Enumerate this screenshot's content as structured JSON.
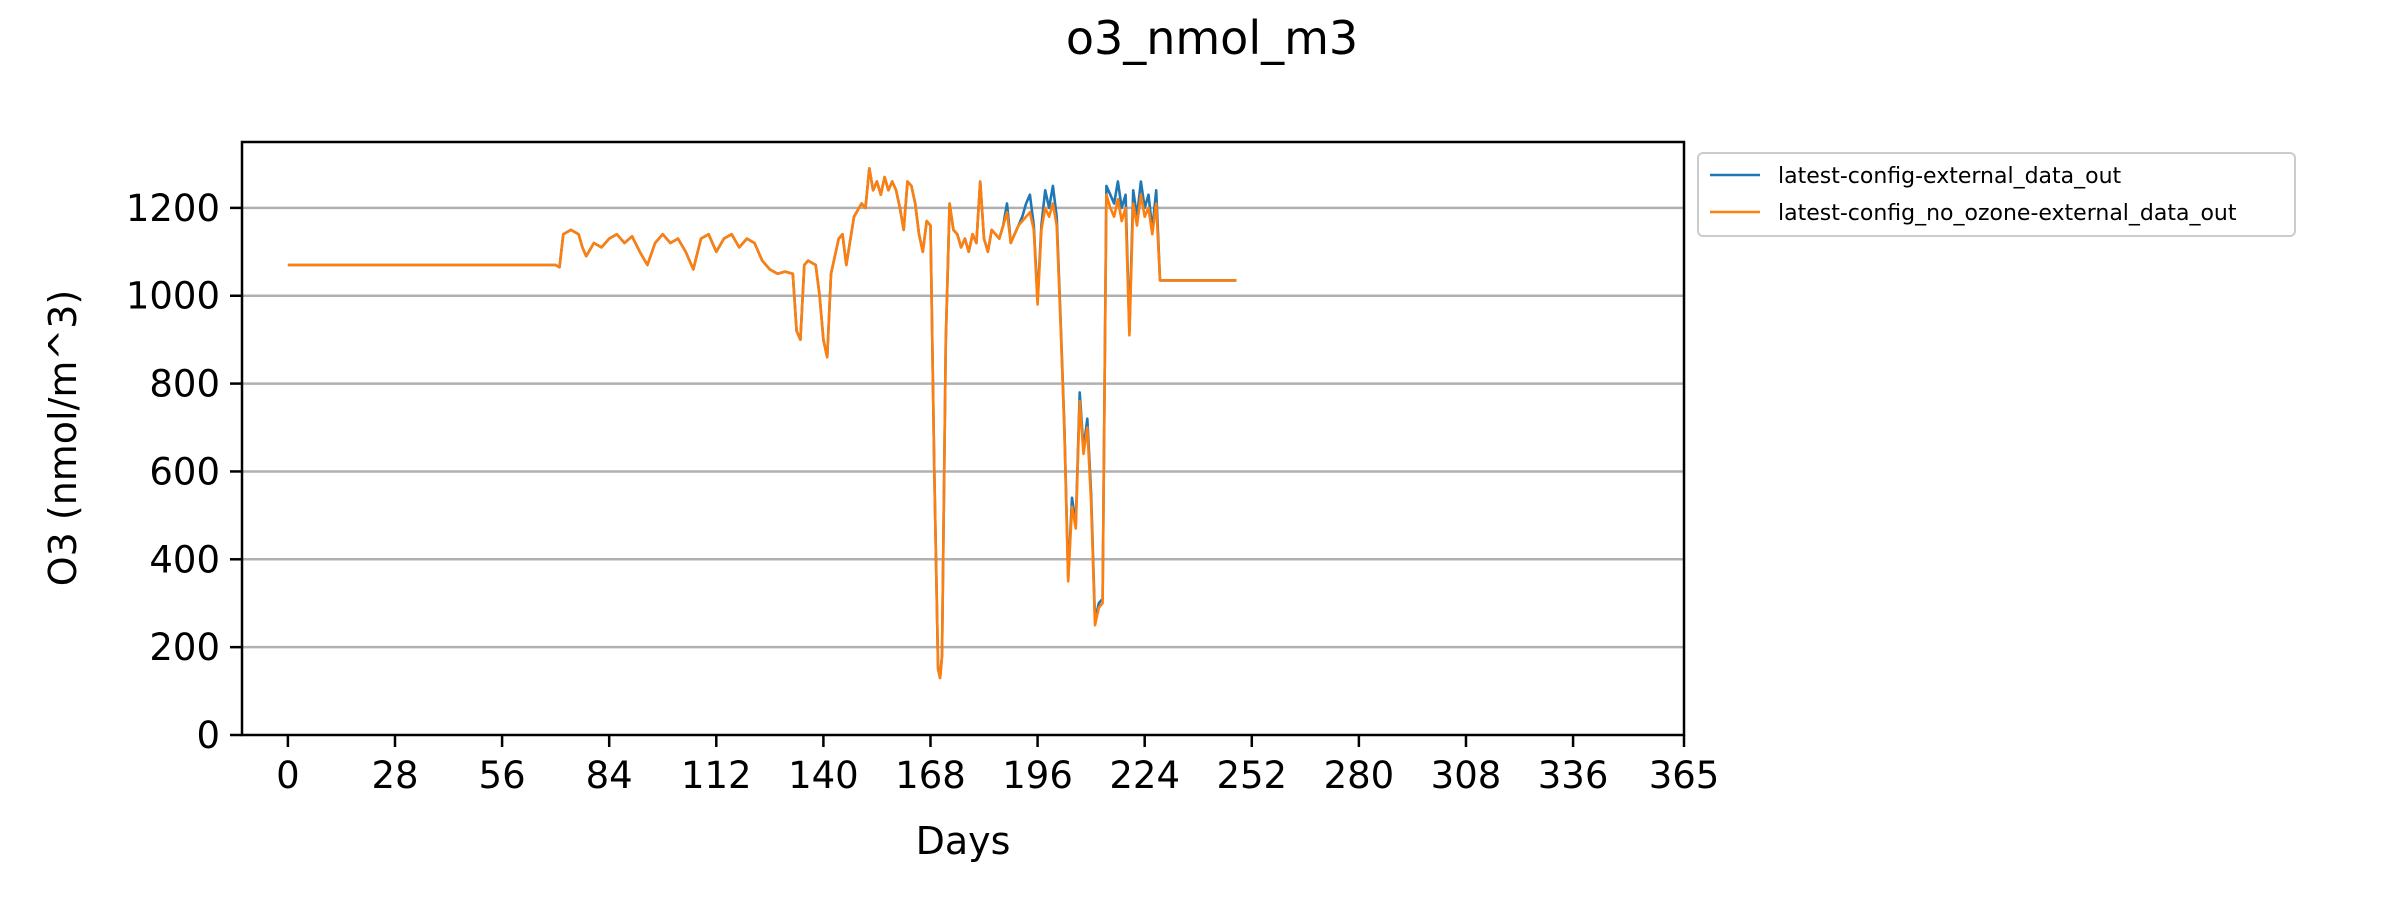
{
  "chart_data": {
    "type": "line",
    "title": "o3_nmol_m3",
    "xlabel": "Days",
    "ylabel": "O3 (nmol/m^3)",
    "xlim": [
      -12,
      365
    ],
    "ylim": [
      0,
      1350
    ],
    "xticks": [
      0,
      28,
      56,
      84,
      112,
      140,
      168,
      196,
      224,
      252,
      280,
      308,
      336,
      365
    ],
    "yticks": [
      0,
      200,
      400,
      600,
      800,
      1000,
      1200
    ],
    "grid": "horizontal",
    "legend_position": "outside-upper-right",
    "series": [
      {
        "name": "latest-config-external_data_out",
        "color": "#1f77b4",
        "points": [
          [
            0,
            1070
          ],
          [
            70,
            1070
          ],
          [
            71,
            1065
          ],
          [
            72,
            1140
          ],
          [
            74,
            1150
          ],
          [
            76,
            1140
          ],
          [
            77,
            1110
          ],
          [
            78,
            1090
          ],
          [
            80,
            1120
          ],
          [
            82,
            1110
          ],
          [
            84,
            1130
          ],
          [
            86,
            1140
          ],
          [
            88,
            1120
          ],
          [
            90,
            1135
          ],
          [
            92,
            1100
          ],
          [
            94,
            1070
          ],
          [
            96,
            1120
          ],
          [
            98,
            1140
          ],
          [
            100,
            1120
          ],
          [
            102,
            1130
          ],
          [
            104,
            1100
          ],
          [
            106,
            1060
          ],
          [
            108,
            1130
          ],
          [
            110,
            1140
          ],
          [
            112,
            1100
          ],
          [
            114,
            1130
          ],
          [
            116,
            1140
          ],
          [
            118,
            1110
          ],
          [
            120,
            1130
          ],
          [
            122,
            1120
          ],
          [
            124,
            1080
          ],
          [
            126,
            1060
          ],
          [
            128,
            1050
          ],
          [
            130,
            1055
          ],
          [
            132,
            1050
          ],
          [
            133,
            920
          ],
          [
            134,
            900
          ],
          [
            135,
            1070
          ],
          [
            136,
            1080
          ],
          [
            138,
            1070
          ],
          [
            139,
            1000
          ],
          [
            140,
            900
          ],
          [
            141,
            860
          ],
          [
            142,
            1050
          ],
          [
            144,
            1130
          ],
          [
            145,
            1140
          ],
          [
            146,
            1070
          ],
          [
            148,
            1180
          ],
          [
            150,
            1210
          ],
          [
            151,
            1200
          ],
          [
            152,
            1290
          ],
          [
            153,
            1240
          ],
          [
            154,
            1260
          ],
          [
            155,
            1230
          ],
          [
            156,
            1270
          ],
          [
            157,
            1240
          ],
          [
            158,
            1260
          ],
          [
            159,
            1240
          ],
          [
            160,
            1200
          ],
          [
            161,
            1150
          ],
          [
            162,
            1260
          ],
          [
            163,
            1250
          ],
          [
            164,
            1210
          ],
          [
            165,
            1140
          ],
          [
            166,
            1100
          ],
          [
            167,
            1170
          ],
          [
            168,
            1160
          ],
          [
            169,
            600
          ],
          [
            170,
            150
          ],
          [
            170.5,
            130
          ],
          [
            171,
            180
          ],
          [
            172,
            900
          ],
          [
            173,
            1210
          ],
          [
            174,
            1150
          ],
          [
            175,
            1140
          ],
          [
            176,
            1110
          ],
          [
            177,
            1130
          ],
          [
            178,
            1100
          ],
          [
            179,
            1140
          ],
          [
            180,
            1120
          ],
          [
            181,
            1260
          ],
          [
            182,
            1130
          ],
          [
            183,
            1100
          ],
          [
            184,
            1150
          ],
          [
            185,
            1140
          ],
          [
            186,
            1130
          ],
          [
            187,
            1160
          ],
          [
            188,
            1210
          ],
          [
            189,
            1120
          ],
          [
            190,
            1140
          ],
          [
            191,
            1160
          ],
          [
            192,
            1180
          ],
          [
            193,
            1210
          ],
          [
            194,
            1230
          ],
          [
            195,
            1160
          ],
          [
            196,
            990
          ],
          [
            197,
            1160
          ],
          [
            198,
            1240
          ],
          [
            199,
            1200
          ],
          [
            200,
            1250
          ],
          [
            201,
            1180
          ],
          [
            202,
            950
          ],
          [
            203,
            700
          ],
          [
            204,
            360
          ],
          [
            205,
            540
          ],
          [
            206,
            480
          ],
          [
            207,
            780
          ],
          [
            208,
            650
          ],
          [
            209,
            720
          ],
          [
            210,
            550
          ],
          [
            211,
            260
          ],
          [
            212,
            300
          ],
          [
            213,
            310
          ],
          [
            214,
            1250
          ],
          [
            215,
            1230
          ],
          [
            216,
            1210
          ],
          [
            217,
            1260
          ],
          [
            218,
            1200
          ],
          [
            219,
            1230
          ],
          [
            220,
            920
          ],
          [
            221,
            1240
          ],
          [
            222,
            1180
          ],
          [
            223,
            1260
          ],
          [
            224,
            1200
          ],
          [
            225,
            1230
          ],
          [
            226,
            1150
          ],
          [
            227,
            1240
          ],
          [
            228,
            1035
          ],
          [
            248,
            1035
          ]
        ]
      },
      {
        "name": "latest-config_no_ozone-external_data_out",
        "color": "#ff7f0e",
        "points": [
          [
            0,
            1070
          ],
          [
            70,
            1070
          ],
          [
            71,
            1065
          ],
          [
            72,
            1140
          ],
          [
            74,
            1150
          ],
          [
            76,
            1140
          ],
          [
            77,
            1110
          ],
          [
            78,
            1090
          ],
          [
            80,
            1120
          ],
          [
            82,
            1110
          ],
          [
            84,
            1130
          ],
          [
            86,
            1140
          ],
          [
            88,
            1120
          ],
          [
            90,
            1135
          ],
          [
            92,
            1100
          ],
          [
            94,
            1070
          ],
          [
            96,
            1120
          ],
          [
            98,
            1140
          ],
          [
            100,
            1120
          ],
          [
            102,
            1130
          ],
          [
            104,
            1100
          ],
          [
            106,
            1060
          ],
          [
            108,
            1130
          ],
          [
            110,
            1140
          ],
          [
            112,
            1100
          ],
          [
            114,
            1130
          ],
          [
            116,
            1140
          ],
          [
            118,
            1110
          ],
          [
            120,
            1130
          ],
          [
            122,
            1120
          ],
          [
            124,
            1080
          ],
          [
            126,
            1060
          ],
          [
            128,
            1050
          ],
          [
            130,
            1055
          ],
          [
            132,
            1050
          ],
          [
            133,
            920
          ],
          [
            134,
            900
          ],
          [
            135,
            1070
          ],
          [
            136,
            1080
          ],
          [
            138,
            1070
          ],
          [
            139,
            1000
          ],
          [
            140,
            900
          ],
          [
            141,
            860
          ],
          [
            142,
            1050
          ],
          [
            144,
            1130
          ],
          [
            145,
            1140
          ],
          [
            146,
            1070
          ],
          [
            148,
            1180
          ],
          [
            150,
            1210
          ],
          [
            151,
            1200
          ],
          [
            152,
            1290
          ],
          [
            153,
            1240
          ],
          [
            154,
            1260
          ],
          [
            155,
            1230
          ],
          [
            156,
            1270
          ],
          [
            157,
            1240
          ],
          [
            158,
            1260
          ],
          [
            159,
            1240
          ],
          [
            160,
            1200
          ],
          [
            161,
            1150
          ],
          [
            162,
            1260
          ],
          [
            163,
            1250
          ],
          [
            164,
            1210
          ],
          [
            165,
            1140
          ],
          [
            166,
            1100
          ],
          [
            167,
            1170
          ],
          [
            168,
            1160
          ],
          [
            169,
            600
          ],
          [
            170,
            150
          ],
          [
            170.5,
            130
          ],
          [
            171,
            180
          ],
          [
            172,
            900
          ],
          [
            173,
            1210
          ],
          [
            174,
            1150
          ],
          [
            175,
            1140
          ],
          [
            176,
            1110
          ],
          [
            177,
            1130
          ],
          [
            178,
            1100
          ],
          [
            179,
            1140
          ],
          [
            180,
            1120
          ],
          [
            181,
            1260
          ],
          [
            182,
            1130
          ],
          [
            183,
            1100
          ],
          [
            184,
            1150
          ],
          [
            185,
            1140
          ],
          [
            186,
            1130
          ],
          [
            187,
            1160
          ],
          [
            188,
            1190
          ],
          [
            189,
            1120
          ],
          [
            190,
            1140
          ],
          [
            191,
            1160
          ],
          [
            192,
            1170
          ],
          [
            193,
            1180
          ],
          [
            194,
            1190
          ],
          [
            195,
            1150
          ],
          [
            196,
            980
          ],
          [
            197,
            1150
          ],
          [
            198,
            1200
          ],
          [
            199,
            1180
          ],
          [
            200,
            1210
          ],
          [
            201,
            1160
          ],
          [
            202,
            940
          ],
          [
            203,
            690
          ],
          [
            204,
            350
          ],
          [
            205,
            520
          ],
          [
            206,
            470
          ],
          [
            207,
            760
          ],
          [
            208,
            640
          ],
          [
            209,
            700
          ],
          [
            210,
            530
          ],
          [
            211,
            250
          ],
          [
            212,
            290
          ],
          [
            213,
            300
          ],
          [
            214,
            1230
          ],
          [
            215,
            1200
          ],
          [
            216,
            1180
          ],
          [
            217,
            1220
          ],
          [
            218,
            1170
          ],
          [
            219,
            1200
          ],
          [
            220,
            910
          ],
          [
            221,
            1210
          ],
          [
            222,
            1160
          ],
          [
            223,
            1230
          ],
          [
            224,
            1180
          ],
          [
            225,
            1200
          ],
          [
            226,
            1140
          ],
          [
            227,
            1210
          ],
          [
            228,
            1035
          ],
          [
            248,
            1035
          ]
        ]
      }
    ]
  }
}
